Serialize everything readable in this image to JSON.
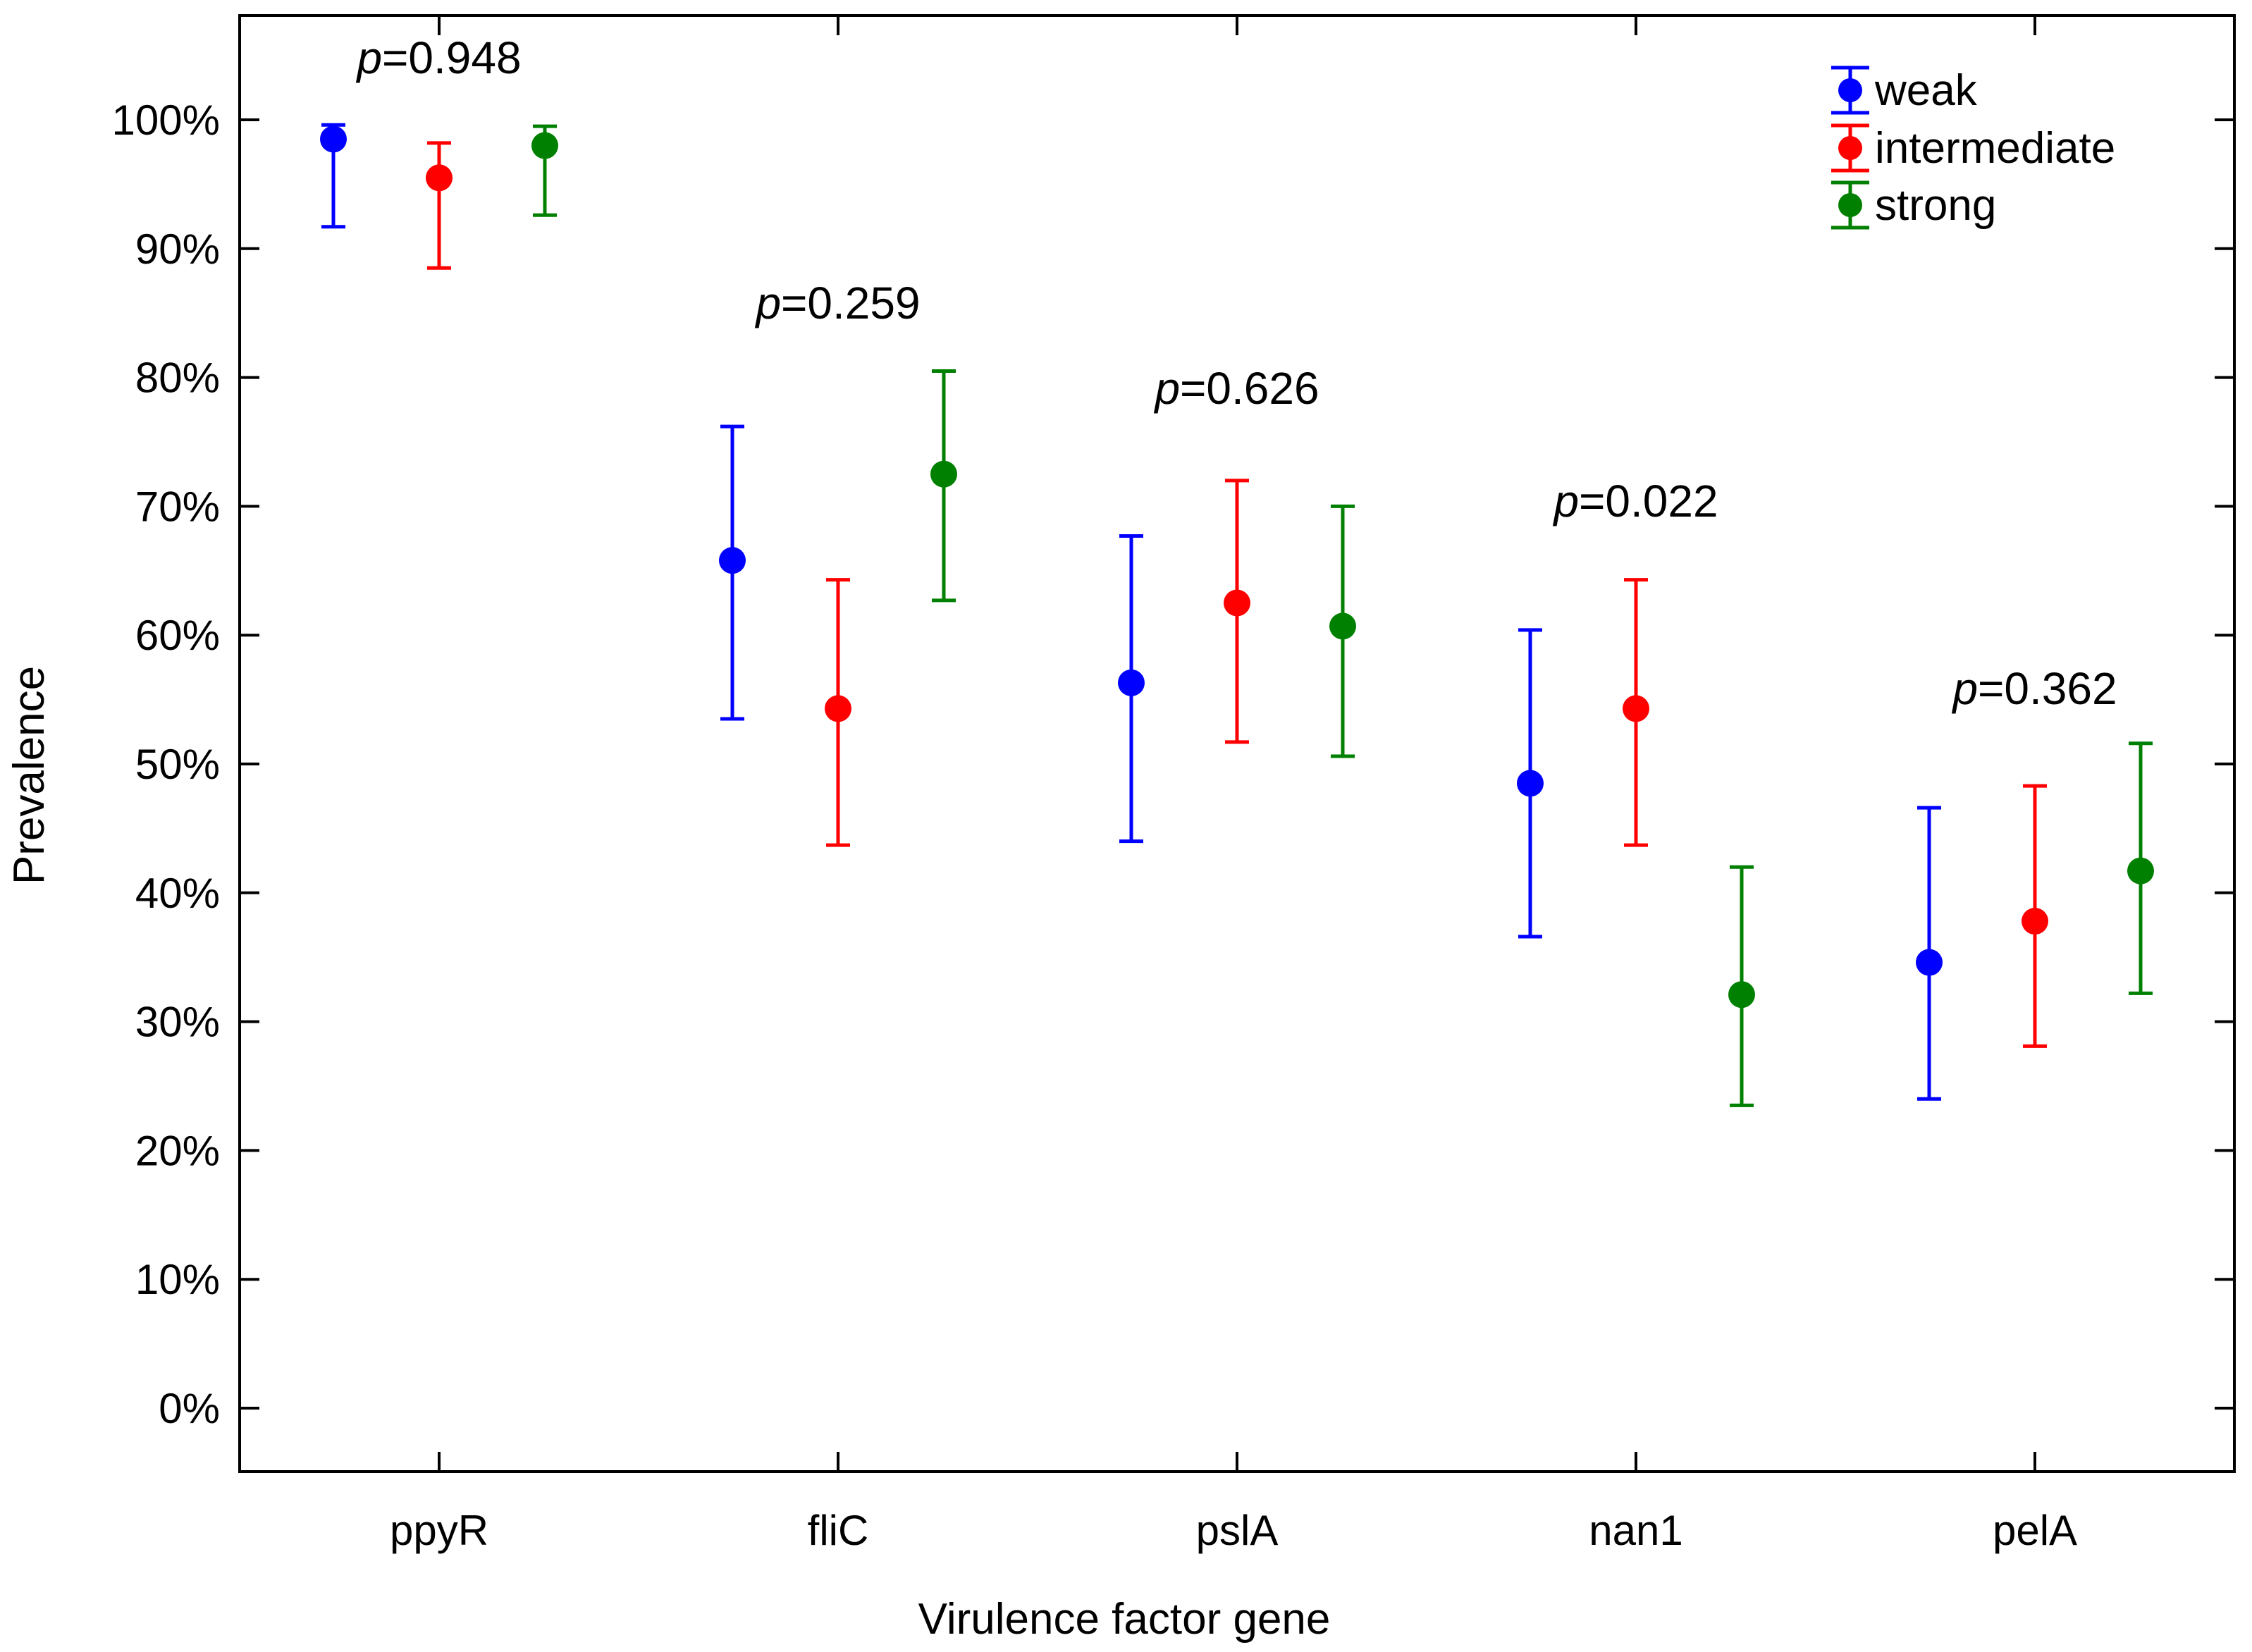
{
  "chart_data": {
    "type": "scatter",
    "subtype": "point-with-error-bars",
    "title": "",
    "xlabel": "Virulence factor gene",
    "ylabel": "Prevalence",
    "ylim": [
      -5,
      105
    ],
    "yticks": [
      0,
      10,
      20,
      30,
      40,
      50,
      60,
      70,
      80,
      90,
      100
    ],
    "ytick_suffix": "%",
    "categories": [
      "ppyR",
      "fliC",
      "pslA",
      "nan1",
      "pelA"
    ],
    "legend_position": "top-right",
    "series": [
      {
        "name": "weak",
        "color": "#0000ff",
        "values": [
          98.5,
          65.8,
          56.3,
          48.5,
          34.6
        ],
        "lower": [
          91.7,
          53.5,
          44.0,
          36.6,
          24.0
        ],
        "upper": [
          99.6,
          76.2,
          67.7,
          60.4,
          46.6
        ]
      },
      {
        "name": "intermediate",
        "color": "#ff0000",
        "values": [
          95.5,
          54.3,
          62.5,
          54.3,
          37.8
        ],
        "lower": [
          88.5,
          43.7,
          51.7,
          43.7,
          28.1
        ],
        "upper": [
          98.2,
          64.3,
          72.0,
          64.3,
          48.3
        ]
      },
      {
        "name": "strong",
        "color": "#008000",
        "values": [
          98.0,
          72.5,
          60.7,
          32.1,
          41.7
        ],
        "lower": [
          92.6,
          62.7,
          50.6,
          23.5,
          32.2
        ],
        "upper": [
          99.5,
          80.5,
          70.0,
          42.0,
          51.6
        ]
      }
    ],
    "annotations": [
      {
        "italic": "p",
        "text": "=0.948",
        "category": "ppyR"
      },
      {
        "italic": "p",
        "text": "=0.259",
        "category": "fliC"
      },
      {
        "italic": "p",
        "text": "=0.626",
        "category": "pslA"
      },
      {
        "italic": "p",
        "text": "=0.022",
        "category": "nan1"
      },
      {
        "italic": "p",
        "text": "=0.362",
        "category": "pelA"
      }
    ]
  }
}
